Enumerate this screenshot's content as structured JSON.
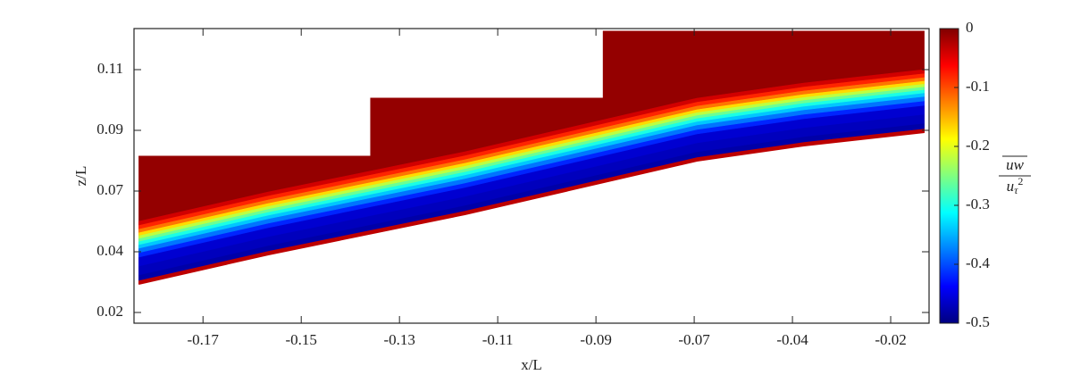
{
  "chart_data": {
    "type": "contour",
    "xlabel": "x/L",
    "ylabel": "z/L",
    "colorbar_label": {
      "numerator": "uw",
      "denominator_base": "u",
      "denominator_sub": "τ",
      "denominator_sup": "2"
    },
    "xlim": [
      -0.1886,
      -0.0146
    ],
    "ylim": [
      0.0209,
      0.1199
    ],
    "xticks": [
      {
        "value": -0.1735,
        "label": "-0.17"
      },
      {
        "value": -0.152,
        "label": "-0.15"
      },
      {
        "value": -0.1305,
        "label": "-0.13"
      },
      {
        "value": -0.109,
        "label": "-0.11"
      },
      {
        "value": -0.0875,
        "label": "-0.09"
      },
      {
        "value": -0.066,
        "label": "-0.07"
      },
      {
        "value": -0.0445,
        "label": "-0.04"
      },
      {
        "value": -0.023,
        "label": "-0.02"
      }
    ],
    "yticks": [
      {
        "value": 0.0245,
        "label": "0.02"
      },
      {
        "value": 0.0449,
        "label": "0.04"
      },
      {
        "value": 0.0653,
        "label": "0.07"
      },
      {
        "value": 0.0857,
        "label": "0.09"
      },
      {
        "value": 0.1061,
        "label": "0.11"
      }
    ],
    "clim": [
      -0.5,
      0
    ],
    "cticks": [
      0,
      {
        "value": -0.1,
        "label": "-0.1"
      },
      {
        "value": -0.2,
        "label": "-0.2"
      },
      {
        "value": -0.3,
        "label": "-0.3"
      },
      {
        "value": -0.4,
        "label": "-0.4"
      },
      {
        "value": -0.5,
        "label": "-0.5"
      }
    ],
    "colormap": "jet",
    "grid": false,
    "wall": {
      "x": [
        -0.1876,
        -0.1592,
        -0.1162,
        -0.0654,
        -0.042,
        -0.0156
      ],
      "z": [
        0.0341,
        0.044,
        0.0575,
        0.0755,
        0.0806,
        0.0851
      ]
    },
    "top": {
      "x": [
        -0.1876,
        -0.1368,
        -0.1368,
        -0.0859,
        -0.0859,
        -0.0156
      ],
      "z": [
        0.077,
        0.077,
        0.0965,
        0.0965,
        0.119,
        0.119
      ]
    },
    "profile": {
      "dz": [
        0,
        0.0012,
        0.003,
        0.006,
        0.009,
        0.0105,
        0.012,
        0.0132,
        0.0143,
        0.0153,
        0.0163,
        0.0173,
        0.0185,
        0.0198,
        0.021
      ],
      "values": [
        -0.03,
        -0.48,
        -0.47,
        -0.46,
        -0.42,
        -0.38,
        -0.34,
        -0.3,
        -0.26,
        -0.22,
        -0.17,
        -0.12,
        -0.08,
        -0.04,
        -0.01
      ]
    }
  }
}
